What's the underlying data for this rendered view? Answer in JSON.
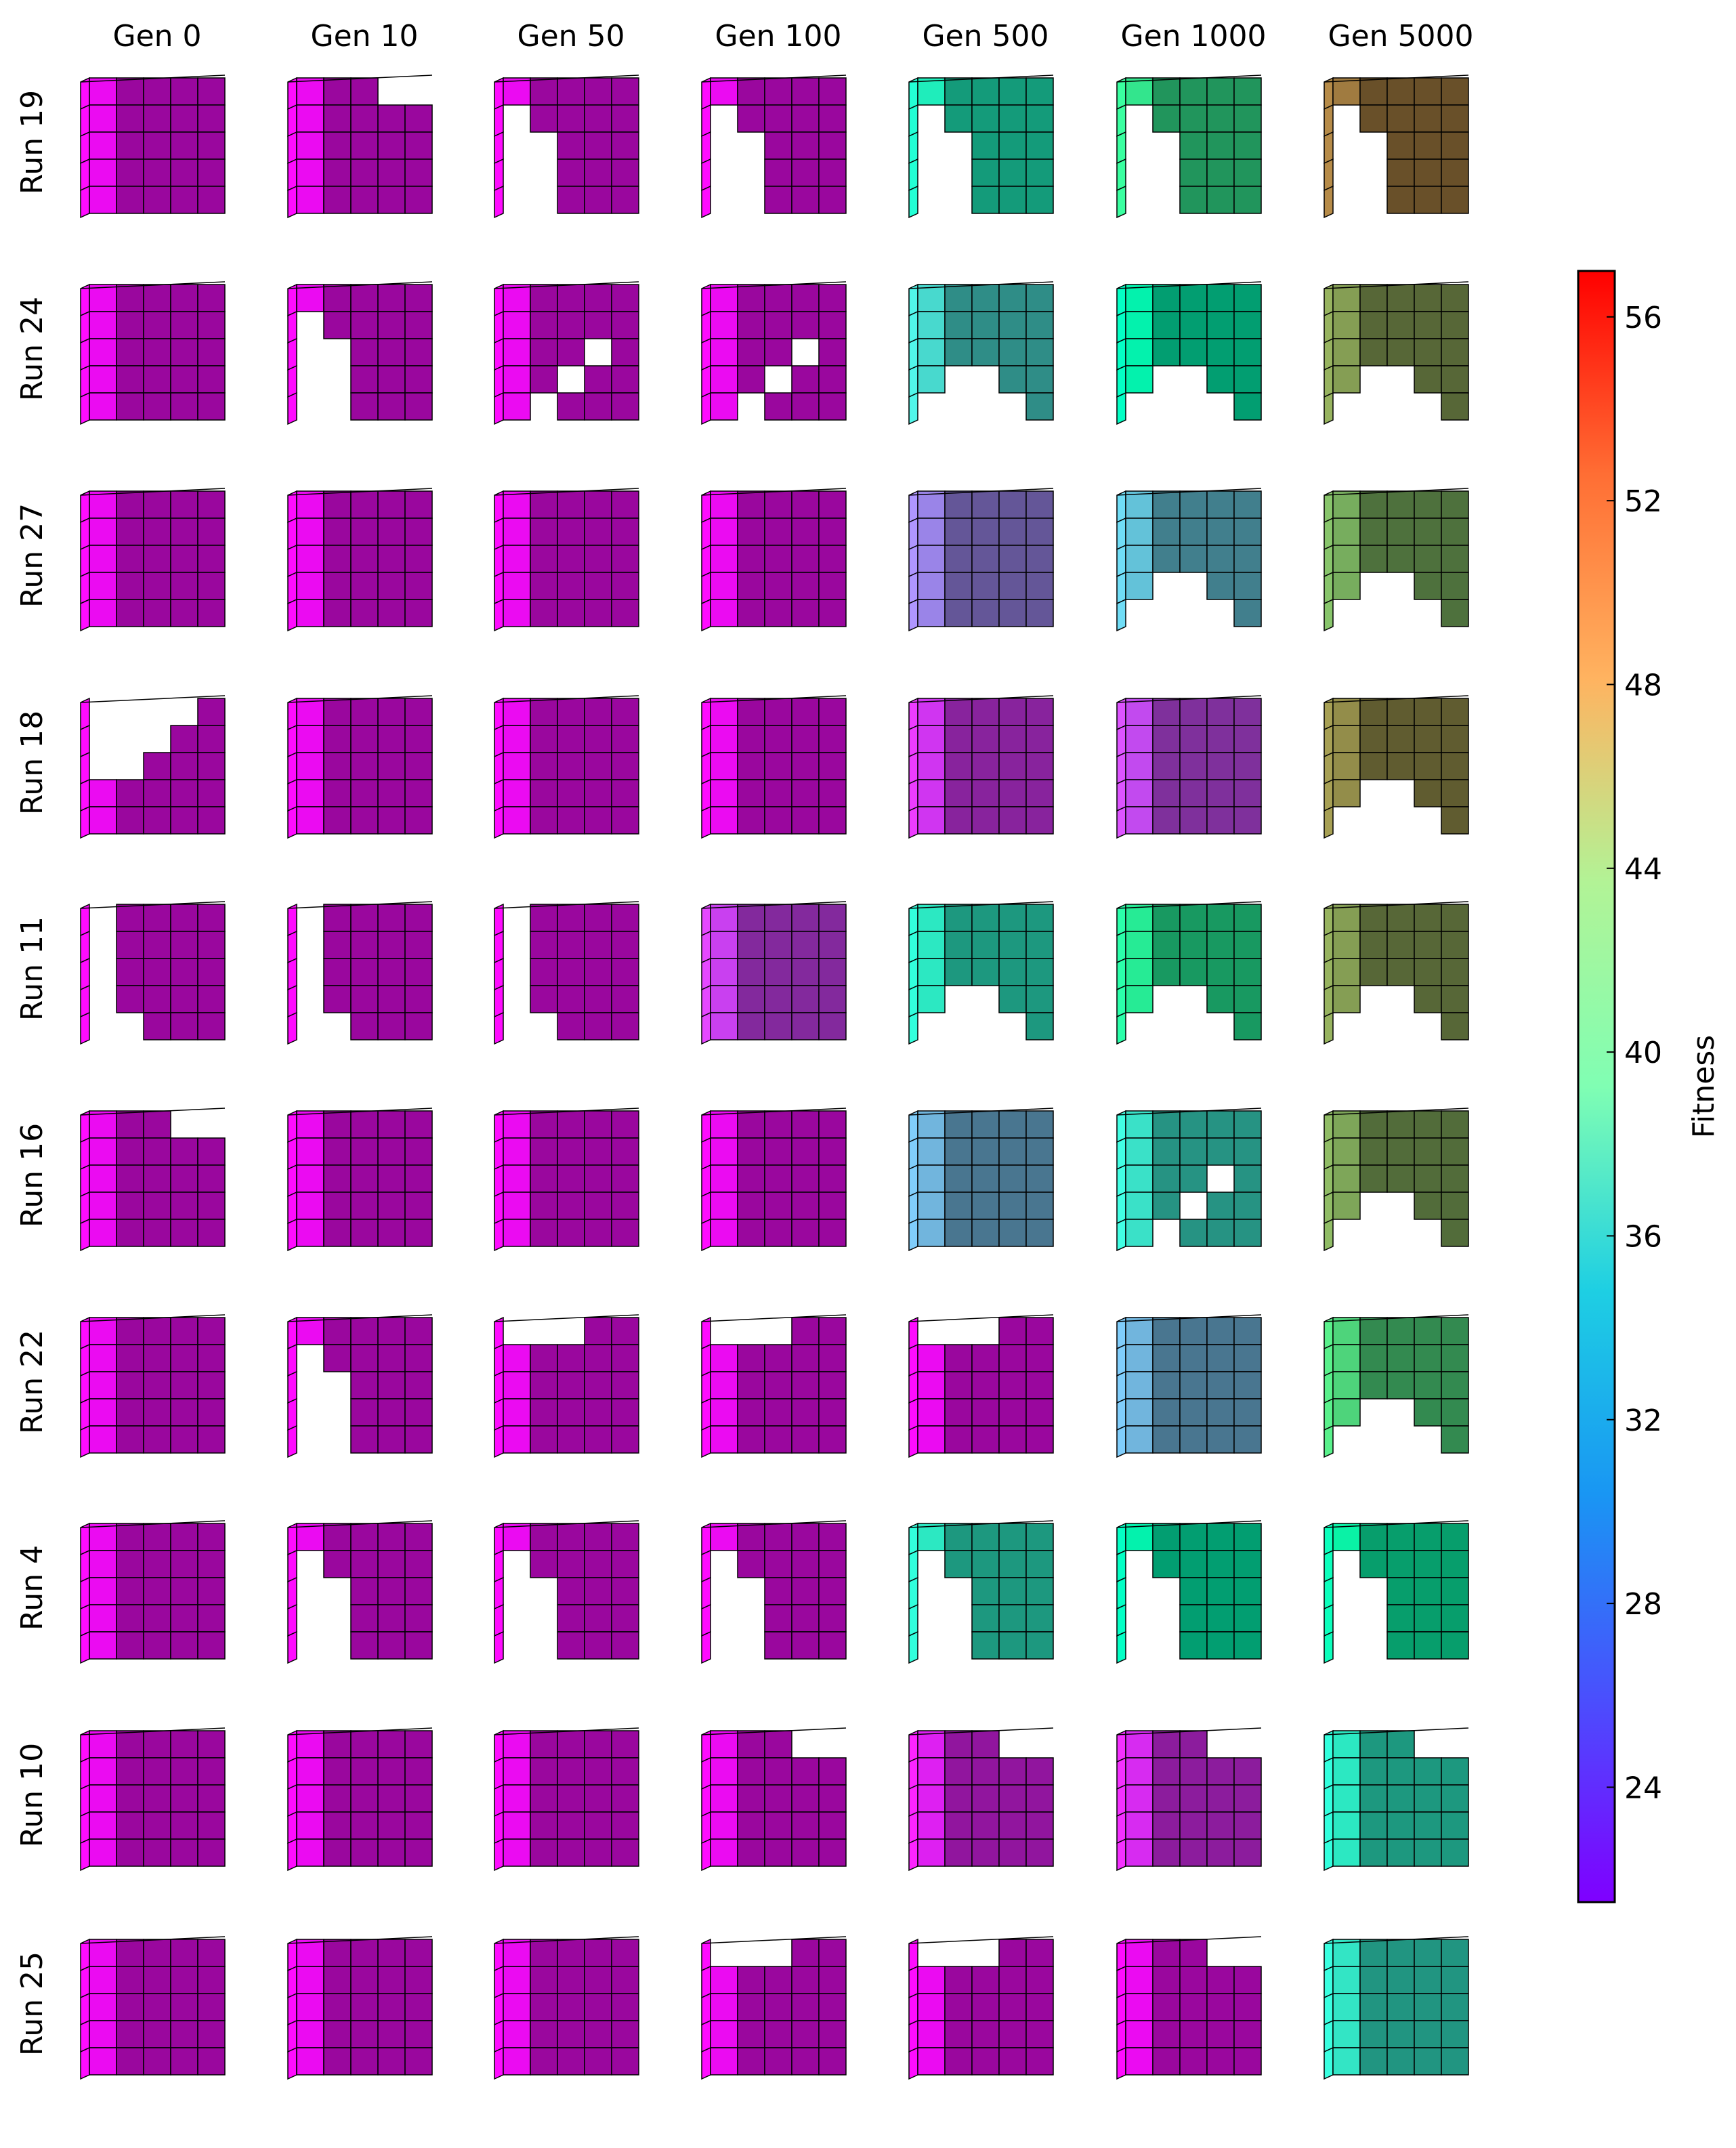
{
  "chart_data": {
    "type": "heatmap",
    "title": "",
    "columns": [
      "Gen 0",
      "Gen 10",
      "Gen 50",
      "Gen 100",
      "Gen 500",
      "Gen 1000",
      "Gen 5000"
    ],
    "rows": [
      "Run 19",
      "Run 24",
      "Run 27",
      "Run 18",
      "Run 11",
      "Run 16",
      "Run 22",
      "Run 4",
      "Run 10",
      "Run 25"
    ],
    "colorbar": {
      "label": "Fitness",
      "colormap": "rainbow",
      "range": [
        21.5,
        57
      ],
      "ticks": [
        24,
        28,
        32,
        36,
        40,
        44,
        48,
        52,
        56
      ],
      "tick_labels": [
        "24",
        "28",
        "32",
        "36",
        "40",
        "44",
        "48",
        "52",
        "56"
      ]
    },
    "fitness": [
      [
        22,
        22,
        22,
        22,
        37,
        43,
        51
      ],
      [
        22,
        22,
        22,
        22,
        34,
        39,
        49
      ],
      [
        22,
        22,
        22,
        22,
        28,
        32,
        48
      ],
      [
        22,
        22,
        22,
        22,
        24,
        25,
        50
      ],
      [
        22,
        22,
        22,
        24.5,
        36,
        42,
        49
      ],
      [
        22,
        22,
        22,
        22,
        31,
        35,
        48.5
      ],
      [
        22,
        22,
        22,
        22,
        22,
        31,
        45
      ],
      [
        22,
        22,
        22,
        22,
        36,
        39,
        40
      ],
      [
        22,
        22,
        22,
        22,
        23,
        23.5,
        36
      ],
      [
        22,
        22,
        22,
        22,
        22,
        22,
        35.5
      ]
    ],
    "shape": [
      [
        "full",
        "notch",
        "tcut",
        "tcut",
        "tcut",
        "tcut",
        "tcut"
      ],
      [
        "full",
        "tcut",
        "holes",
        "holes",
        "bottomcut",
        "bottomcut",
        "bottomcut"
      ],
      [
        "full",
        "full",
        "full",
        "full",
        "full",
        "bottomcut",
        "bottomcut"
      ],
      [
        "stair",
        "full",
        "full",
        "full",
        "full",
        "full",
        "bottomcut"
      ],
      [
        "small",
        "small",
        "small",
        "full",
        "bottomcut",
        "bottomcut",
        "bottomcut"
      ],
      [
        "notch",
        "full",
        "full",
        "full",
        "full",
        "holes",
        "bottomcut"
      ],
      [
        "full",
        "tcut",
        "lowtop",
        "lowtop",
        "lowtop",
        "full",
        "bottomcut"
      ],
      [
        "full",
        "tcut",
        "tcut",
        "tcut",
        "tcut",
        "tcut",
        "tcut"
      ],
      [
        "full",
        "full",
        "full",
        "notch",
        "notch",
        "notch",
        "notch"
      ],
      [
        "full",
        "full",
        "full",
        "lowtop",
        "lowtop",
        "notch",
        "full"
      ]
    ]
  }
}
